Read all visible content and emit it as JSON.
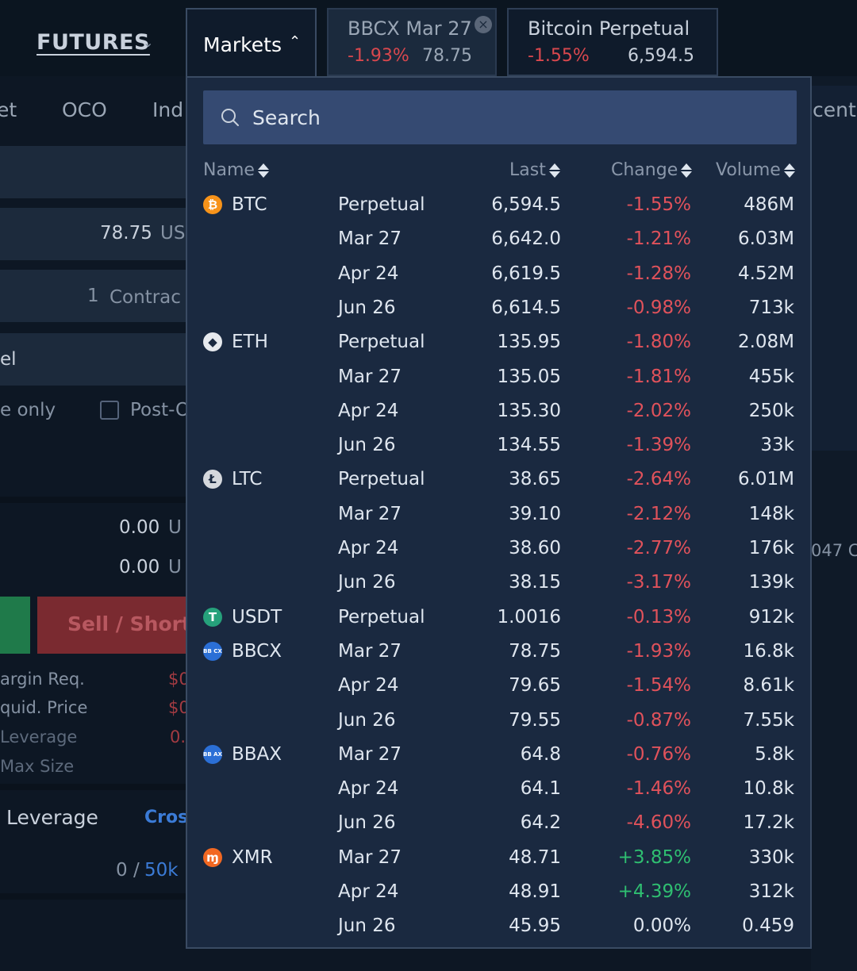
{
  "header": {
    "futures_label": "FUTURES",
    "markets_label": "Markets",
    "tabs": [
      {
        "title": "BBCX Mar 27",
        "change": "-1.93%",
        "price": "78.75"
      },
      {
        "title": "Bitcoin Perpetual",
        "change": "-1.55%",
        "price": "6,594.5"
      }
    ]
  },
  "background": {
    "order_types": [
      "et",
      "OCO",
      "Ind"
    ],
    "price_value": "78.75",
    "price_unit": "US",
    "qty_value": "1",
    "qty_unit": "Contrac",
    "order_label": "el",
    "reduce_only": "e only",
    "post_only": "Post-O",
    "value1": "0.00",
    "value1_unit": "U",
    "value2": "0.00",
    "value2_unit": "U",
    "sell_label": "Sell / Short",
    "margin_req": "argin Req.",
    "margin_req_val": "$0",
    "liquid_price": "quid. Price",
    "liquid_price_val": "$0",
    "leverage_lbl": "Leverage",
    "leverage_val": "0.",
    "max_size": "Max Size",
    "leverage_title": "Leverage",
    "cross_label": "Cros",
    "limit_used": "0",
    "limit_sep": "/",
    "limit_max": "50k",
    "recent_label": "cent",
    "side_value": "047 C"
  },
  "markets": {
    "search_placeholder": "Search",
    "columns": {
      "name": "Name",
      "last": "Last",
      "change": "Change",
      "volume": "Volume"
    },
    "rows": [
      {
        "coin": "BTC",
        "contract": "Perpetual",
        "last": "6,594.5",
        "change": "-1.55%",
        "volume": "486M",
        "dir": "neg"
      },
      {
        "coin": "",
        "contract": "Mar 27",
        "last": "6,642.0",
        "change": "-1.21%",
        "volume": "6.03M",
        "dir": "neg"
      },
      {
        "coin": "",
        "contract": "Apr 24",
        "last": "6,619.5",
        "change": "-1.28%",
        "volume": "4.52M",
        "dir": "neg"
      },
      {
        "coin": "",
        "contract": "Jun 26",
        "last": "6,614.5",
        "change": "-0.98%",
        "volume": "713k",
        "dir": "neg"
      },
      {
        "coin": "ETH",
        "contract": "Perpetual",
        "last": "135.95",
        "change": "-1.80%",
        "volume": "2.08M",
        "dir": "neg"
      },
      {
        "coin": "",
        "contract": "Mar 27",
        "last": "135.05",
        "change": "-1.81%",
        "volume": "455k",
        "dir": "neg"
      },
      {
        "coin": "",
        "contract": "Apr 24",
        "last": "135.30",
        "change": "-2.02%",
        "volume": "250k",
        "dir": "neg"
      },
      {
        "coin": "",
        "contract": "Jun 26",
        "last": "134.55",
        "change": "-1.39%",
        "volume": "33k",
        "dir": "neg"
      },
      {
        "coin": "LTC",
        "contract": "Perpetual",
        "last": "38.65",
        "change": "-2.64%",
        "volume": "6.01M",
        "dir": "neg"
      },
      {
        "coin": "",
        "contract": "Mar 27",
        "last": "39.10",
        "change": "-2.12%",
        "volume": "148k",
        "dir": "neg"
      },
      {
        "coin": "",
        "contract": "Apr 24",
        "last": "38.60",
        "change": "-2.77%",
        "volume": "176k",
        "dir": "neg"
      },
      {
        "coin": "",
        "contract": "Jun 26",
        "last": "38.15",
        "change": "-3.17%",
        "volume": "139k",
        "dir": "neg"
      },
      {
        "coin": "USDT",
        "contract": "Perpetual",
        "last": "1.0016",
        "change": "-0.13%",
        "volume": "912k",
        "dir": "neg"
      },
      {
        "coin": "BBCX",
        "contract": "Mar 27",
        "last": "78.75",
        "change": "-1.93%",
        "volume": "16.8k",
        "dir": "neg"
      },
      {
        "coin": "",
        "contract": "Apr 24",
        "last": "79.65",
        "change": "-1.54%",
        "volume": "8.61k",
        "dir": "neg"
      },
      {
        "coin": "",
        "contract": "Jun 26",
        "last": "79.55",
        "change": "-0.87%",
        "volume": "7.55k",
        "dir": "neg"
      },
      {
        "coin": "BBAX",
        "contract": "Mar 27",
        "last": "64.8",
        "change": "-0.76%",
        "volume": "5.8k",
        "dir": "neg"
      },
      {
        "coin": "",
        "contract": "Apr 24",
        "last": "64.1",
        "change": "-1.46%",
        "volume": "10.8k",
        "dir": "neg"
      },
      {
        "coin": "",
        "contract": "Jun 26",
        "last": "64.2",
        "change": "-4.60%",
        "volume": "17.2k",
        "dir": "neg"
      },
      {
        "coin": "XMR",
        "contract": "Mar 27",
        "last": "48.71",
        "change": "+3.85%",
        "volume": "330k",
        "dir": "pos"
      },
      {
        "coin": "",
        "contract": "Apr 24",
        "last": "48.91",
        "change": "+4.39%",
        "volume": "312k",
        "dir": "pos"
      },
      {
        "coin": "",
        "contract": "Jun 26",
        "last": "45.95",
        "change": "0.00%",
        "volume": "0.459",
        "dir": "neu"
      }
    ],
    "coin_icons": {
      "BTC": {
        "icon": "bitcoin-icon",
        "color": "#f7931a",
        "glyph": "₿"
      },
      "ETH": {
        "icon": "ethereum-icon",
        "color": "#e6e9ee",
        "glyph": "◆"
      },
      "LTC": {
        "icon": "litecoin-icon",
        "color": "#d5d8dd",
        "glyph": "Ł"
      },
      "USDT": {
        "icon": "tether-icon",
        "color": "#26a17b",
        "glyph": "T"
      },
      "BBCX": {
        "icon": "bbcx-icon",
        "color": "#2b6fd6",
        "glyph": "BB CX"
      },
      "BBAX": {
        "icon": "bbax-icon",
        "color": "#2b6fd6",
        "glyph": "BB AX"
      },
      "XMR": {
        "icon": "monero-icon",
        "color": "#f26822",
        "glyph": "ɱ"
      }
    }
  }
}
